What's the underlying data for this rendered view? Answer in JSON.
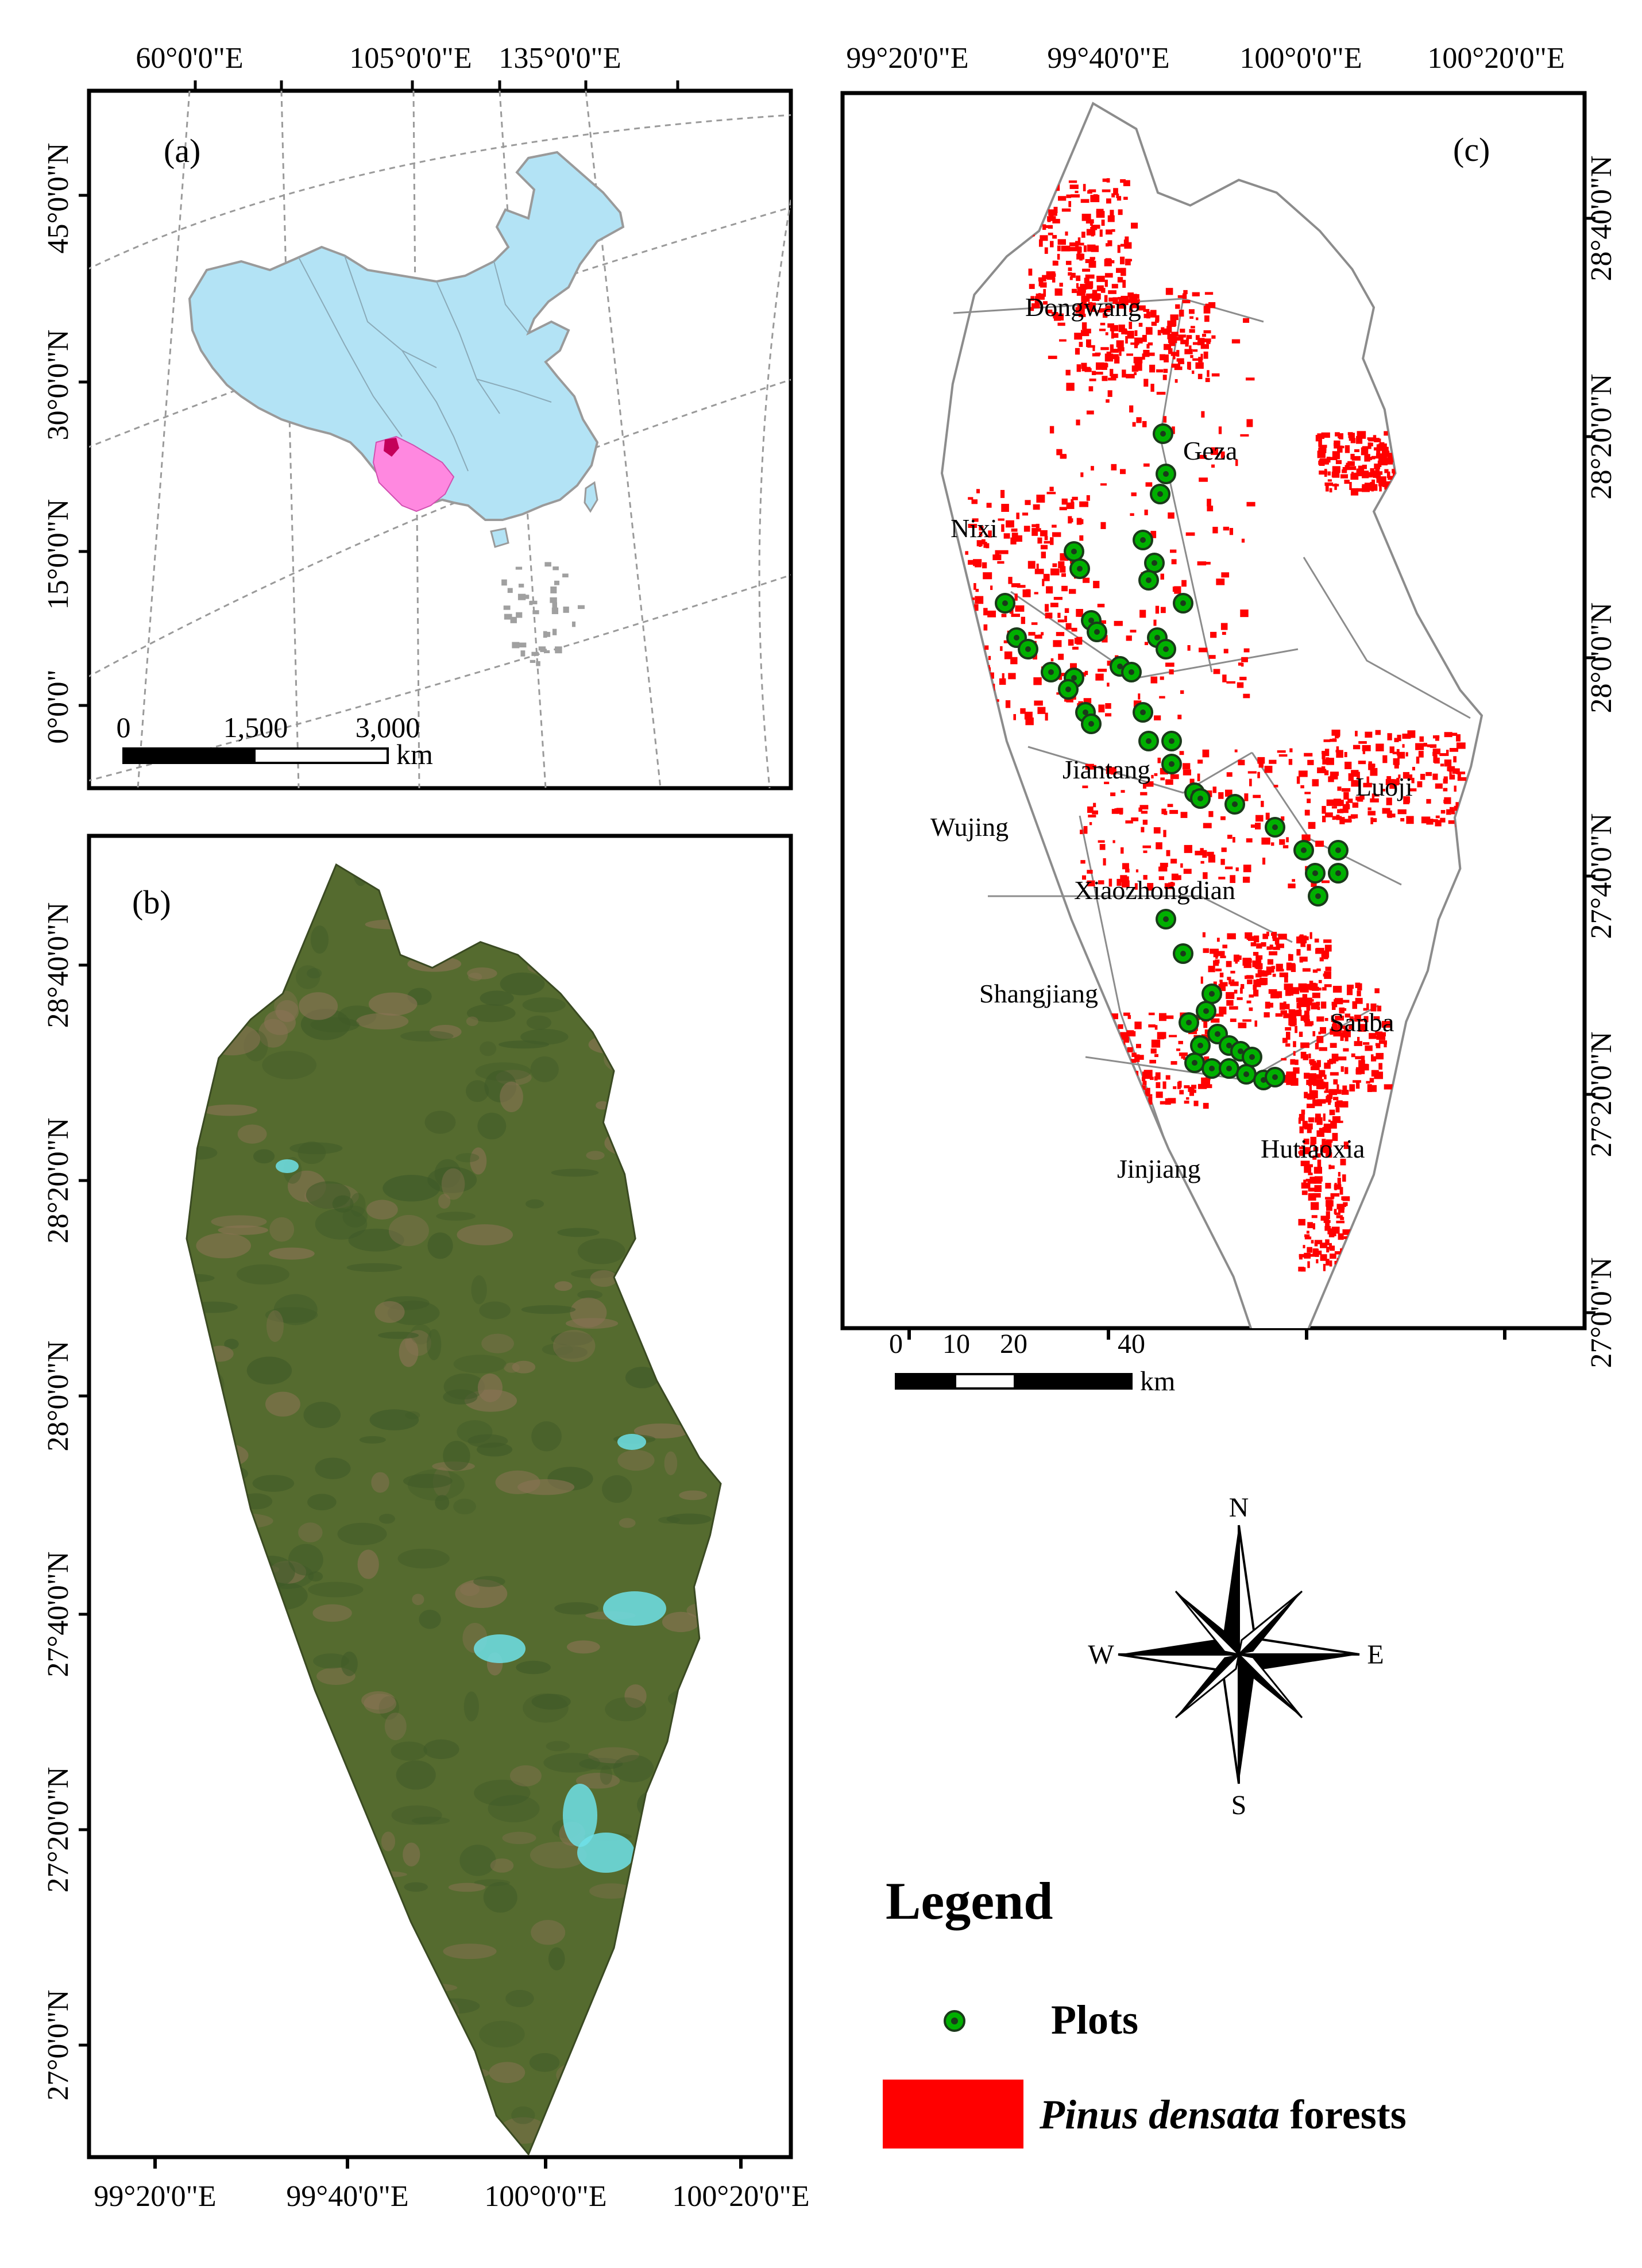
{
  "panel_a": {
    "label": "(a)",
    "top_ticks": [
      "60°0'0\"E",
      "105°0'0\"E",
      "135°0'0\"E"
    ],
    "left_ticks": [
      "45°0'0\"N",
      "30°0'0\"N",
      "15°0'0\"N",
      "0°0'0\""
    ],
    "scale_labels": [
      "0",
      "1,500",
      "3,000"
    ],
    "scale_unit": "km",
    "colors": {
      "country": "#b3e3f5",
      "province": "#ff88e0",
      "highlight": "#c4005a",
      "islands": "#a0a0a0"
    }
  },
  "panel_b": {
    "label": "(b)",
    "bottom_ticks": [
      "99°20'0\"E",
      "99°40'0\"E",
      "100°0'0\"E",
      "100°20'0\"E"
    ],
    "left_ticks": [
      "28°40'0\"N",
      "28°20'0\"N",
      "28°0'0\"N",
      "27°40'0\"N",
      "27°20'0\"N",
      "27°0'0\"N"
    ],
    "colors": {
      "vegetation": "#556b2f",
      "bare": "#8b7355",
      "snow": "#6fe0e8"
    }
  },
  "panel_c": {
    "label": "(c)",
    "top_ticks": [
      "99°20'0\"E",
      "99°40'0\"E",
      "100°0'0\"E",
      "100°20'0\"E"
    ],
    "right_ticks": [
      "28°40'0\"N",
      "28°20'0\"N",
      "28°0'0\"N",
      "27°40'0\"N",
      "27°20'0\"N",
      "27°0'0\"N"
    ],
    "townships": [
      "Dongwang",
      "Geza",
      "Nixi",
      "Jiantang",
      "Luoji",
      "Wujing",
      "Xiaozhongdian",
      "Shangjiang",
      "Sanba",
      "Jinjiang",
      "Hutiaoxia"
    ],
    "scale_labels": [
      "0",
      "10",
      "20",
      "40"
    ],
    "scale_unit": "km",
    "colors": {
      "forest": "#ff0000",
      "plot_fill": "#00b000",
      "plot_center": "#1a3a1a",
      "boundary": "#8c8c8c"
    }
  },
  "compass": {
    "n": "N",
    "s": "S",
    "e": "E",
    "w": "W"
  },
  "legend": {
    "title": "Legend",
    "items": [
      {
        "symbol": "green-dot",
        "label_plain": "Plots"
      },
      {
        "symbol": "red-rect",
        "label_italic": "Pinus densata",
        "label_plain": " forests"
      }
    ]
  }
}
